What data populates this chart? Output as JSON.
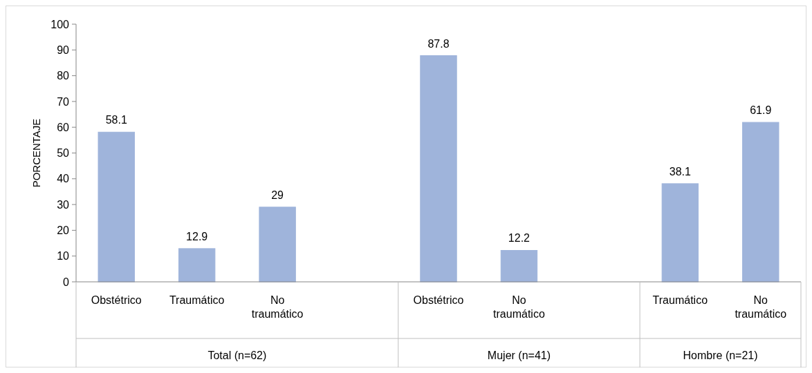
{
  "chart_data": {
    "type": "bar",
    "ylabel": "PORCENTAJE",
    "categories": [
      "Obstétrico",
      "Traumático",
      "No traumático",
      null,
      "Obstétrico",
      "No traumático",
      null,
      "Traumático",
      "No traumático"
    ],
    "values": [
      58.1,
      12.9,
      29,
      null,
      87.8,
      12.2,
      null,
      38.1,
      61.9
    ],
    "color": "#9fb4db",
    "ylim": [
      0,
      100
    ],
    "yticks": [
      0,
      10,
      20,
      30,
      40,
      50,
      60,
      70,
      80,
      90,
      100
    ],
    "grid": false,
    "data_labels": true,
    "annotations": [
      "Total (n=62)",
      "Mujer (n=41)",
      "Hombre (n=21)"
    ]
  }
}
